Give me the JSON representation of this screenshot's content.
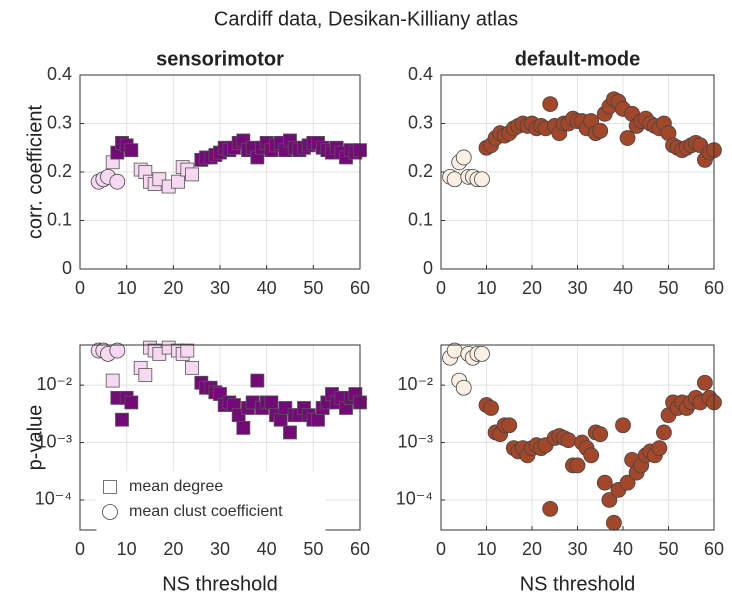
{
  "title": "Cardiff data, Desikan-Killiany atlas",
  "chart_data": [
    {
      "type": "scatter",
      "title": "sensorimotor",
      "ylabel": "corr. coefficient",
      "xlim": [
        0,
        60
      ],
      "xticks": [
        0,
        10,
        20,
        30,
        40,
        50,
        60
      ],
      "ylim": [
        0,
        0.4
      ],
      "yticks": [
        0,
        0.1,
        0.2,
        0.3,
        0.4
      ],
      "grid": true,
      "series": [
        {
          "marker": "circle",
          "color": "#f6d8f0",
          "x": [
            4,
            5,
            6,
            8
          ],
          "values": [
            0.18,
            0.185,
            0.19,
            0.18
          ]
        },
        {
          "marker": "square",
          "color": "#f6d8f0",
          "x": [
            7,
            13,
            14,
            15,
            16,
            17,
            19,
            21,
            22,
            23,
            24
          ],
          "values": [
            0.22,
            0.205,
            0.2,
            0.18,
            0.175,
            0.185,
            0.17,
            0.18,
            0.21,
            0.205,
            0.195
          ]
        },
        {
          "marker": "square",
          "color": "#730a78",
          "x": [
            8,
            9,
            10,
            11,
            26,
            27,
            28,
            29,
            30,
            31,
            32,
            33,
            34,
            35,
            36,
            37,
            38,
            39,
            40,
            41,
            42,
            43,
            44,
            45,
            46,
            47,
            48,
            49,
            50,
            51,
            52,
            53,
            54,
            55,
            56,
            57,
            58,
            59,
            60
          ],
          "values": [
            0.24,
            0.26,
            0.255,
            0.245,
            0.225,
            0.23,
            0.23,
            0.235,
            0.24,
            0.25,
            0.245,
            0.25,
            0.26,
            0.265,
            0.245,
            0.25,
            0.23,
            0.25,
            0.26,
            0.245,
            0.255,
            0.26,
            0.245,
            0.265,
            0.25,
            0.245,
            0.25,
            0.255,
            0.26,
            0.26,
            0.25,
            0.245,
            0.24,
            0.25,
            0.24,
            0.23,
            0.245,
            0.24,
            0.245
          ]
        }
      ]
    },
    {
      "type": "scatter",
      "title": "default-mode",
      "xlim": [
        0,
        60
      ],
      "xticks": [
        0,
        10,
        20,
        30,
        40,
        50,
        60
      ],
      "ylim": [
        0,
        0.4
      ],
      "yticks": [
        0,
        0.1,
        0.2,
        0.3,
        0.4
      ],
      "grid": true,
      "series": [
        {
          "marker": "circle",
          "color": "#fcf0e3",
          "x": [
            2,
            3,
            4,
            5,
            6,
            7,
            8,
            9
          ],
          "values": [
            0.19,
            0.185,
            0.22,
            0.23,
            0.19,
            0.19,
            0.185,
            0.185
          ]
        },
        {
          "marker": "circle",
          "color": "#a2472a",
          "x": [
            10,
            11,
            12,
            13,
            14,
            15,
            16,
            17,
            18,
            19,
            20,
            21,
            22,
            23,
            24,
            25,
            26,
            27,
            28,
            29,
            30,
            31,
            32,
            33,
            34,
            35,
            36,
            37,
            38,
            39,
            40,
            41,
            42,
            43,
            44,
            45,
            46,
            47,
            48,
            49,
            50,
            51,
            52,
            53,
            54,
            55,
            56,
            57,
            58,
            59,
            60
          ],
          "values": [
            0.25,
            0.255,
            0.27,
            0.28,
            0.275,
            0.28,
            0.29,
            0.295,
            0.3,
            0.295,
            0.3,
            0.29,
            0.295,
            0.29,
            0.34,
            0.295,
            0.28,
            0.3,
            0.3,
            0.31,
            0.305,
            0.305,
            0.29,
            0.305,
            0.28,
            0.285,
            0.32,
            0.335,
            0.35,
            0.345,
            0.33,
            0.27,
            0.32,
            0.295,
            0.305,
            0.31,
            0.3,
            0.295,
            0.29,
            0.3,
            0.28,
            0.255,
            0.25,
            0.245,
            0.25,
            0.255,
            0.26,
            0.255,
            0.225,
            0.24,
            0.245
          ]
        }
      ]
    },
    {
      "type": "scatter",
      "ylabel": "p-value",
      "xlabel": "NS threshold",
      "yscale": "log",
      "xlim": [
        0,
        60
      ],
      "xticks": [
        0,
        10,
        20,
        30,
        40,
        50,
        60
      ],
      "ylim": [
        3e-05,
        0.05
      ],
      "yticks": [
        {
          "value": 0.0001,
          "label": "10⁻⁴"
        },
        {
          "value": 0.001,
          "label": "10⁻³"
        },
        {
          "value": 0.01,
          "label": "10⁻²"
        }
      ],
      "grid": true,
      "legend": [
        {
          "label": "mean degree",
          "marker": "square"
        },
        {
          "label": "mean clust coefficient",
          "marker": "circle"
        }
      ],
      "legend_loc": "lower left",
      "series": [
        {
          "marker": "circle",
          "color": "#f6d8f0",
          "x": [
            4,
            5,
            6,
            8
          ],
          "values": [
            0.04,
            0.04,
            0.035,
            0.04
          ]
        },
        {
          "marker": "square",
          "color": "#f6d8f0",
          "x": [
            7,
            13,
            14,
            15,
            16,
            17,
            19,
            21,
            22,
            23,
            24
          ],
          "values": [
            0.012,
            0.02,
            0.015,
            0.045,
            0.04,
            0.035,
            0.045,
            0.04,
            0.035,
            0.04,
            0.02
          ]
        },
        {
          "marker": "square",
          "color": "#730a78",
          "x": [
            8,
            9,
            10,
            11,
            26,
            27,
            28,
            29,
            30,
            31,
            32,
            33,
            34,
            35,
            36,
            37,
            38,
            39,
            40,
            41,
            42,
            43,
            44,
            45,
            46,
            47,
            48,
            49,
            50,
            51,
            52,
            53,
            54,
            55,
            56,
            57,
            58,
            59,
            60
          ],
          "values": [
            0.006,
            0.0025,
            0.006,
            0.005,
            0.011,
            0.009,
            0.009,
            0.0075,
            0.007,
            0.0045,
            0.005,
            0.0045,
            0.003,
            0.0018,
            0.004,
            0.005,
            0.012,
            0.004,
            0.005,
            0.005,
            0.003,
            0.0025,
            0.004,
            0.0015,
            0.003,
            0.003,
            0.004,
            0.003,
            0.0025,
            0.0025,
            0.004,
            0.005,
            0.007,
            0.005,
            0.006,
            0.004,
            0.006,
            0.007,
            0.005
          ]
        }
      ]
    },
    {
      "type": "scatter",
      "xlabel": "NS threshold",
      "yscale": "log",
      "xlim": [
        0,
        60
      ],
      "xticks": [
        0,
        10,
        20,
        30,
        40,
        50,
        60
      ],
      "ylim": [
        3e-05,
        0.05
      ],
      "yticks": [
        {
          "value": 0.0001,
          "label": "10⁻⁴"
        },
        {
          "value": 0.001,
          "label": "10⁻³"
        },
        {
          "value": 0.01,
          "label": "10⁻²"
        }
      ],
      "grid": true,
      "series": [
        {
          "marker": "circle",
          "color": "#fcf0e3",
          "x": [
            2,
            3,
            4,
            5,
            6,
            7,
            8,
            9
          ],
          "values": [
            0.03,
            0.04,
            0.012,
            0.009,
            0.035,
            0.03,
            0.035,
            0.035
          ]
        },
        {
          "marker": "circle",
          "color": "#a2472a",
          "x": [
            10,
            11,
            12,
            13,
            14,
            15,
            16,
            17,
            18,
            19,
            20,
            21,
            22,
            23,
            24,
            25,
            26,
            27,
            28,
            29,
            30,
            31,
            32,
            33,
            34,
            35,
            36,
            37,
            38,
            39,
            40,
            41,
            42,
            43,
            44,
            45,
            46,
            47,
            48,
            49,
            50,
            51,
            52,
            53,
            54,
            55,
            56,
            57,
            58,
            59,
            60
          ],
          "values": [
            0.0045,
            0.004,
            0.0015,
            0.0014,
            0.002,
            0.002,
            0.0008,
            0.0007,
            0.0008,
            0.0006,
            0.0008,
            0.0009,
            0.0008,
            0.0009,
            7e-05,
            0.0012,
            0.0013,
            0.0012,
            0.0011,
            0.0004,
            0.0004,
            0.001,
            0.0008,
            0.0006,
            0.0015,
            0.0014,
            0.0002,
            0.0001,
            4e-05,
            0.00015,
            0.002,
            0.0002,
            0.0005,
            0.0003,
            0.0004,
            0.0006,
            0.0007,
            0.0006,
            0.0008,
            0.0015,
            0.003,
            0.005,
            0.004,
            0.005,
            0.004,
            0.005,
            0.006,
            0.005,
            0.011,
            0.006,
            0.005
          ]
        }
      ]
    }
  ]
}
